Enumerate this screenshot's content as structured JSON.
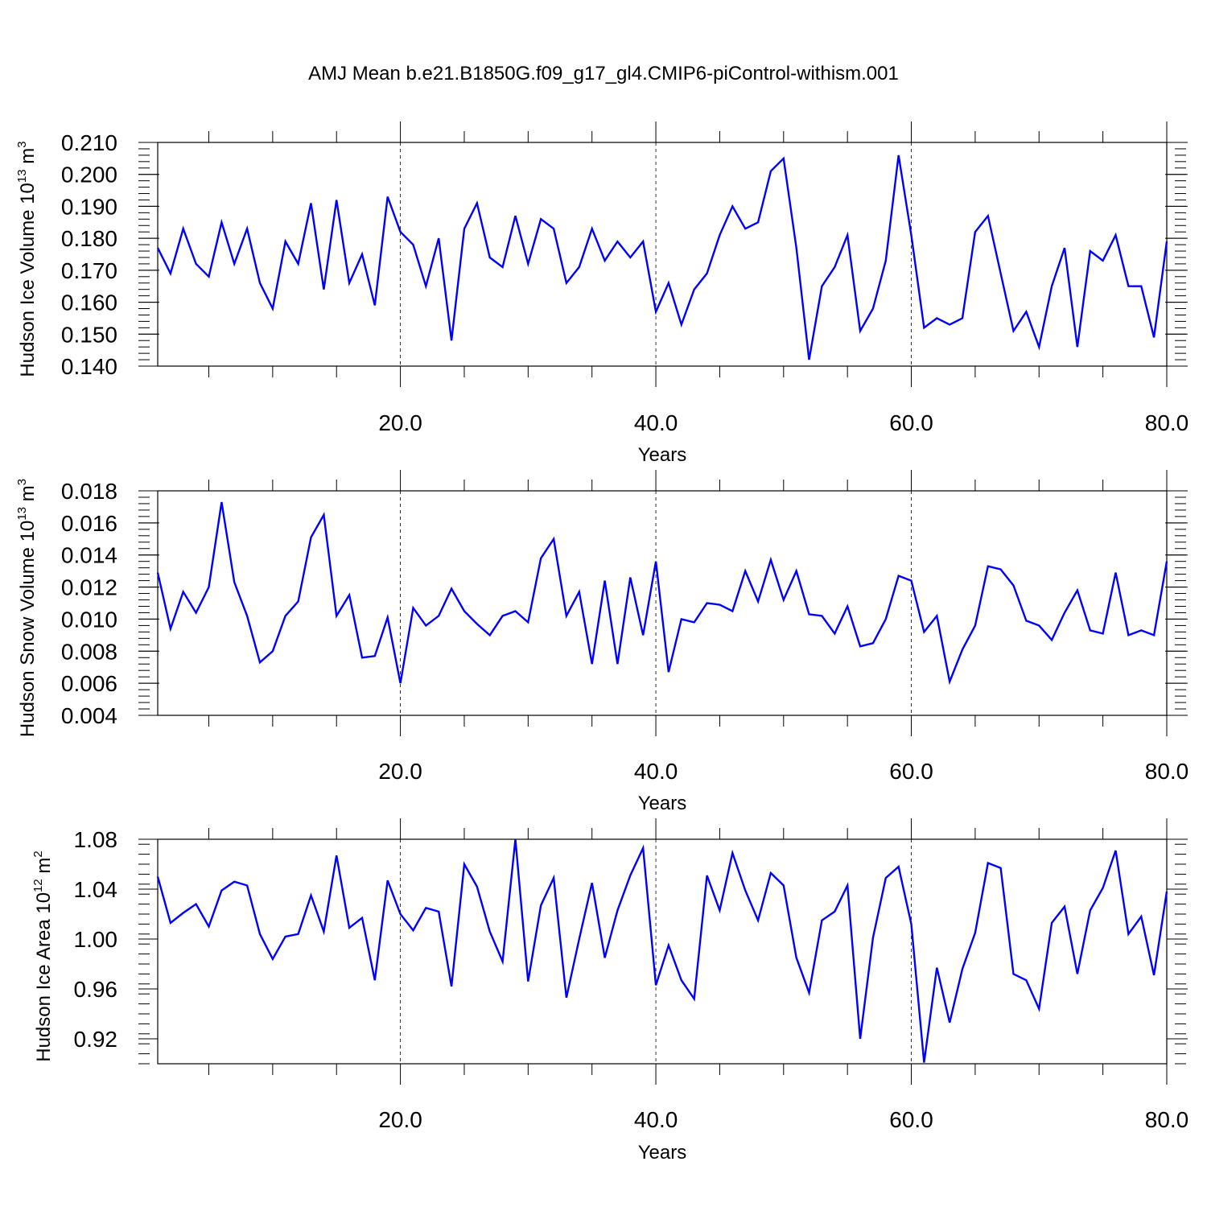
{
  "title": "AMJ Mean b.e21.B1850G.f09_g17_gl4.CMIP6-piControl-withism.001",
  "line_color": "#0000ff",
  "chart_data": [
    {
      "type": "line",
      "ylabel": "Hudson Ice Volume 10",
      "ylabel_exp": "13",
      "ylabel_unit": " m",
      "ylabel_unit_exp": "3",
      "xlabel": "Years",
      "xlim": [
        1,
        80
      ],
      "ylim": [
        0.14,
        0.21
      ],
      "x_ticks": [
        20,
        40,
        60,
        80
      ],
      "x_tick_labels": [
        "20.0",
        "40.0",
        "60.0",
        "80.0"
      ],
      "y_ticks": [
        0.14,
        0.15,
        0.16,
        0.17,
        0.18,
        0.19,
        0.2,
        0.21
      ],
      "y_tick_labels": [
        "0.140",
        "0.150",
        "0.160",
        "0.170",
        "0.180",
        "0.190",
        "0.200",
        "0.210"
      ],
      "grid_x": [
        20,
        40,
        60
      ],
      "x": [
        1,
        2,
        3,
        4,
        5,
        6,
        7,
        8,
        9,
        10,
        11,
        12,
        13,
        14,
        15,
        16,
        17,
        18,
        19,
        20,
        21,
        22,
        23,
        24,
        25,
        26,
        27,
        28,
        29,
        30,
        31,
        32,
        33,
        34,
        35,
        36,
        37,
        38,
        39,
        40,
        41,
        42,
        43,
        44,
        45,
        46,
        47,
        48,
        49,
        50,
        51,
        52,
        53,
        54,
        55,
        56,
        57,
        58,
        59,
        60,
        61,
        62,
        63,
        64,
        65,
        66,
        67,
        68,
        69,
        70,
        71,
        72,
        73,
        74,
        75,
        76,
        77,
        78,
        79,
        80
      ],
      "y": [
        0.177,
        0.169,
        0.183,
        0.172,
        0.168,
        0.185,
        0.172,
        0.183,
        0.166,
        0.158,
        0.179,
        0.172,
        0.191,
        0.164,
        0.192,
        0.166,
        0.175,
        0.159,
        0.193,
        0.182,
        0.178,
        0.165,
        0.18,
        0.148,
        0.183,
        0.191,
        0.174,
        0.171,
        0.187,
        0.172,
        0.186,
        0.183,
        0.166,
        0.171,
        0.183,
        0.173,
        0.179,
        0.174,
        0.179,
        0.157,
        0.166,
        0.153,
        0.164,
        0.169,
        0.181,
        0.19,
        0.183,
        0.185,
        0.201,
        0.205,
        0.177,
        0.142,
        0.165,
        0.171,
        0.181,
        0.151,
        0.158,
        0.173,
        0.206,
        0.181,
        0.152,
        0.155,
        0.153,
        0.155,
        0.182,
        0.187,
        0.169,
        0.151,
        0.157,
        0.146,
        0.165,
        0.177,
        0.146,
        0.176,
        0.173,
        0.181,
        0.165,
        0.165,
        0.149,
        0.179
      ]
    },
    {
      "type": "line",
      "ylabel": "Hudson Snow Volume 10",
      "ylabel_exp": "13",
      "ylabel_unit": " m",
      "ylabel_unit_exp": "3",
      "xlabel": "Years",
      "xlim": [
        1,
        80
      ],
      "ylim": [
        0.004,
        0.018
      ],
      "x_ticks": [
        20,
        40,
        60,
        80
      ],
      "x_tick_labels": [
        "20.0",
        "40.0",
        "60.0",
        "80.0"
      ],
      "y_ticks": [
        0.004,
        0.006,
        0.008,
        0.01,
        0.012,
        0.014,
        0.016,
        0.018
      ],
      "y_tick_labels": [
        "0.004",
        "0.006",
        "0.008",
        "0.010",
        "0.012",
        "0.014",
        "0.016",
        "0.018"
      ],
      "grid_x": [
        20,
        40,
        60
      ],
      "x": [
        1,
        2,
        3,
        4,
        5,
        6,
        7,
        8,
        9,
        10,
        11,
        12,
        13,
        14,
        15,
        16,
        17,
        18,
        19,
        20,
        21,
        22,
        23,
        24,
        25,
        26,
        27,
        28,
        29,
        30,
        31,
        32,
        33,
        34,
        35,
        36,
        37,
        38,
        39,
        40,
        41,
        42,
        43,
        44,
        45,
        46,
        47,
        48,
        49,
        50,
        51,
        52,
        53,
        54,
        55,
        56,
        57,
        58,
        59,
        60,
        61,
        62,
        63,
        64,
        65,
        66,
        67,
        68,
        69,
        70,
        71,
        72,
        73,
        74,
        75,
        76,
        77,
        78,
        79,
        80
      ],
      "y": [
        0.0129,
        0.0094,
        0.0117,
        0.0104,
        0.012,
        0.0173,
        0.0123,
        0.0102,
        0.0073,
        0.008,
        0.0102,
        0.0111,
        0.0151,
        0.0165,
        0.0102,
        0.0115,
        0.0076,
        0.0077,
        0.0101,
        0.006,
        0.0107,
        0.0096,
        0.0102,
        0.0119,
        0.0105,
        0.0097,
        0.009,
        0.0102,
        0.0105,
        0.0098,
        0.0138,
        0.015,
        0.0102,
        0.0117,
        0.0072,
        0.0124,
        0.0072,
        0.0126,
        0.009,
        0.0136,
        0.0067,
        0.01,
        0.0098,
        0.011,
        0.0109,
        0.0105,
        0.013,
        0.0111,
        0.0137,
        0.0112,
        0.013,
        0.0103,
        0.0102,
        0.0091,
        0.0108,
        0.0083,
        0.0085,
        0.01,
        0.0127,
        0.0124,
        0.0092,
        0.0102,
        0.0061,
        0.0081,
        0.0096,
        0.0133,
        0.0131,
        0.0121,
        0.0099,
        0.0096,
        0.0087,
        0.0104,
        0.0118,
        0.0093,
        0.0091,
        0.0129,
        0.009,
        0.0093,
        0.009,
        0.0136
      ]
    },
    {
      "type": "line",
      "ylabel": "Hudson Ice Area 10",
      "ylabel_exp": "12",
      "ylabel_unit": " m",
      "ylabel_unit_exp": "2",
      "xlabel": "Years",
      "xlim": [
        1,
        80
      ],
      "ylim": [
        0.9,
        1.08
      ],
      "x_ticks": [
        20,
        40,
        60,
        80
      ],
      "x_tick_labels": [
        "20.0",
        "40.0",
        "60.0",
        "80.0"
      ],
      "y_ticks": [
        0.92,
        0.96,
        1.0,
        1.04,
        1.08
      ],
      "y_tick_labels": [
        "0.92",
        "0.96",
        "1.00",
        "1.04",
        "1.08"
      ],
      "grid_x": [
        20,
        40,
        60
      ],
      "x": [
        1,
        2,
        3,
        4,
        5,
        6,
        7,
        8,
        9,
        10,
        11,
        12,
        13,
        14,
        15,
        16,
        17,
        18,
        19,
        20,
        21,
        22,
        23,
        24,
        25,
        26,
        27,
        28,
        29,
        30,
        31,
        32,
        33,
        34,
        35,
        36,
        37,
        38,
        39,
        40,
        41,
        42,
        43,
        44,
        45,
        46,
        47,
        48,
        49,
        50,
        51,
        52,
        53,
        54,
        55,
        56,
        57,
        58,
        59,
        60,
        61,
        62,
        63,
        64,
        65,
        66,
        67,
        68,
        69,
        70,
        71,
        72,
        73,
        74,
        75,
        76,
        77,
        78,
        79,
        80
      ],
      "y": [
        1.05,
        1.013,
        1.021,
        1.028,
        1.01,
        1.039,
        1.046,
        1.043,
        1.004,
        0.984,
        1.002,
        1.004,
        1.035,
        1.006,
        1.067,
        1.009,
        1.017,
        0.967,
        1.047,
        1.02,
        1.007,
        1.025,
        1.022,
        0.962,
        1.06,
        1.042,
        1.006,
        0.982,
        1.08,
        0.966,
        1.027,
        1.049,
        0.953,
        1.0,
        1.045,
        0.985,
        1.023,
        1.051,
        1.073,
        0.963,
        0.995,
        0.967,
        0.952,
        1.051,
        1.023,
        1.069,
        1.039,
        1.015,
        1.053,
        1.043,
        0.985,
        0.957,
        1.015,
        1.022,
        1.043,
        0.92,
        1.001,
        1.049,
        1.058,
        1.012,
        0.901,
        0.977,
        0.933,
        0.976,
        1.005,
        1.061,
        1.057,
        0.972,
        0.967,
        0.944,
        1.013,
        1.026,
        0.972,
        1.023,
        1.041,
        1.071,
        1.004,
        1.018,
        0.971,
        1.038
      ]
    }
  ]
}
